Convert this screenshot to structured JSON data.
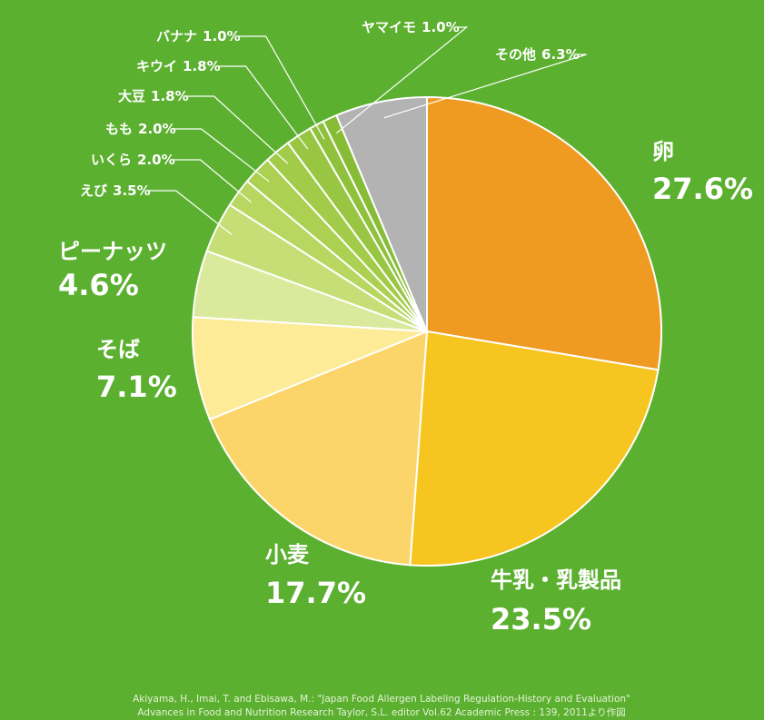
{
  "chart_data": {
    "type": "pie",
    "categories": [
      "卵",
      "牛乳・乳製品",
      "小麦",
      "そば",
      "ピーナッツ",
      "えび",
      "いくら",
      "もも",
      "大豆",
      "キウイ",
      "バナナ",
      "ヤマイモ",
      "その他"
    ],
    "values": [
      27.6,
      23.5,
      17.7,
      7.1,
      4.6,
      3.5,
      2.0,
      2.0,
      1.8,
      1.8,
      1.0,
      1.0,
      6.3
    ],
    "value_labels": [
      "27.6%",
      "23.5%",
      "17.7%",
      "7.1%",
      "4.6%",
      "3.5%",
      "2.0%",
      "2.0%",
      "1.8%",
      "1.8%",
      "1.0%",
      "1.0%",
      "6.3%"
    ],
    "colors": [
      "#ef9b22",
      "#f7c520",
      "#fbd56a",
      "#fdeb98",
      "#dbe99c",
      "#c6de76",
      "#b7d760",
      "#abd052",
      "#a2cb4a",
      "#98c642",
      "#8fc13c",
      "#87bd36",
      "#b3b3b3"
    ],
    "source": [
      "Akiyama, H., Imai, T. and Ebisawa, M.: \"Japan Food Allergen Labeling Regulation-History and Evaluation\"",
      "Advances in Food and Nutrition Research Taylor, S.L. editor Vol.62 Academic Press : 139, 2011より作図"
    ]
  }
}
